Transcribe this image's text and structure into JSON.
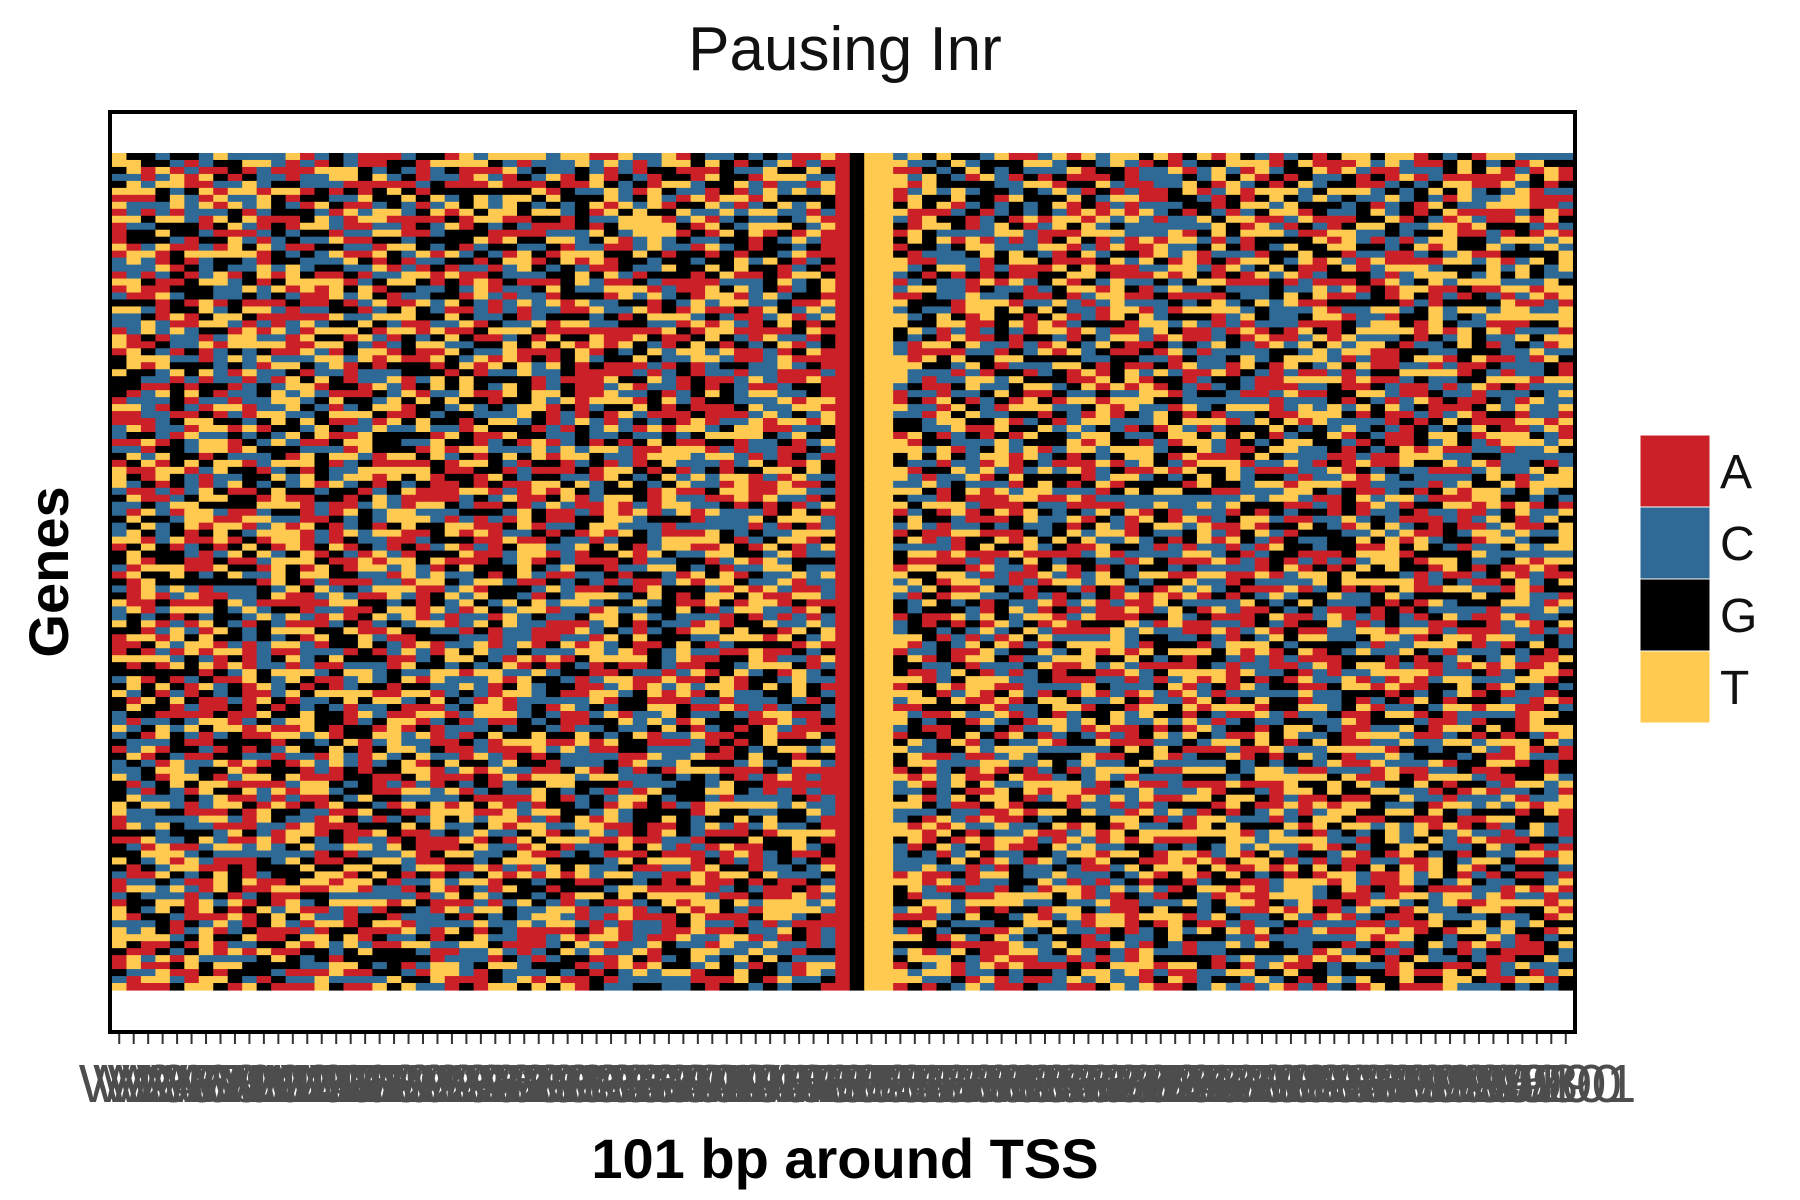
{
  "chart_data": {
    "type": "heatmap",
    "title": "Pausing Inr",
    "xlabel": "101 bp around TSS",
    "ylabel": "Genes",
    "x": [
      "W1",
      "W2",
      "W3",
      "W4",
      "W5",
      "W6",
      "W7",
      "W8",
      "W9",
      "W10",
      "W11",
      "W12",
      "W13",
      "W14",
      "W15",
      "W16",
      "W17",
      "W18",
      "W19",
      "W20",
      "W21",
      "W22",
      "W23",
      "W24",
      "W25",
      "W26",
      "W27",
      "W28",
      "W29",
      "W30",
      "W31",
      "W32",
      "W33",
      "W34",
      "W35",
      "W36",
      "W37",
      "W38",
      "W39",
      "W40",
      "W41",
      "W42",
      "W43",
      "W44",
      "W45",
      "W46",
      "W47",
      "W48",
      "W49",
      "W50",
      "W51",
      "W52",
      "W53",
      "W54",
      "W55",
      "W56",
      "W57",
      "W58",
      "W59",
      "W60",
      "W61",
      "W62",
      "W63",
      "W64",
      "W65",
      "W66",
      "W67",
      "W68",
      "W69",
      "W70",
      "W71",
      "W72",
      "W73",
      "W74",
      "W75",
      "W76",
      "W77",
      "W78",
      "W79",
      "W80",
      "W81",
      "W82",
      "W83",
      "W84",
      "W85",
      "W86",
      "W87",
      "W88",
      "W89",
      "W90",
      "W91",
      "W92",
      "W93",
      "W94",
      "W95",
      "W96",
      "W97",
      "W98",
      "W99",
      "W100",
      "W101"
    ],
    "n_genes": 120,
    "legend": {
      "position": "right",
      "entries": [
        {
          "label": "A",
          "color": "#CB2027"
        },
        {
          "label": "C",
          "color": "#2F6A97"
        },
        {
          "label": "G",
          "color": "#000000"
        },
        {
          "label": "T",
          "color": "#FFCA4F"
        }
      ]
    },
    "fixed_columns": {
      "W51": "A",
      "W52": "G",
      "W53": "T",
      "W54": "T"
    },
    "grid": false
  }
}
